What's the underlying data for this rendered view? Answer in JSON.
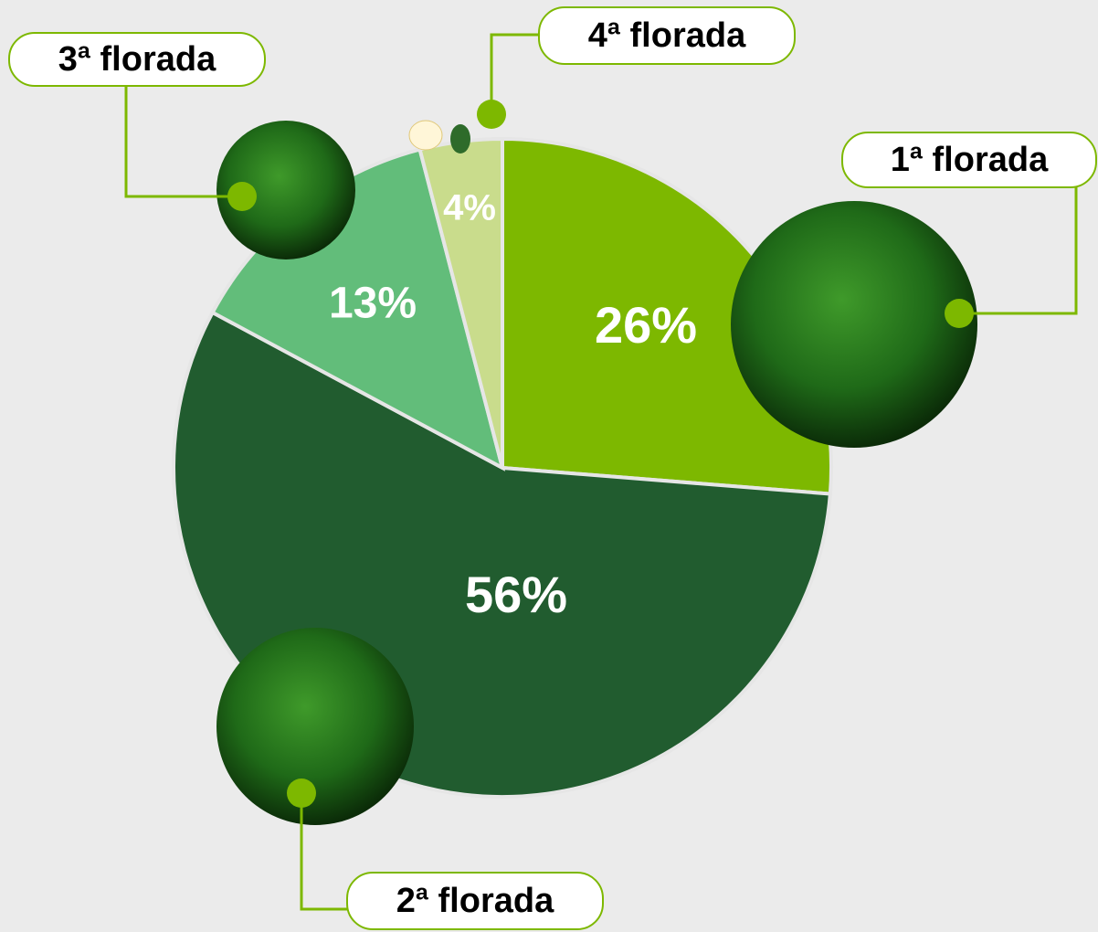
{
  "chart_data": {
    "type": "pie",
    "categories": [
      "1ª florada",
      "2ª florada",
      "3ª florada",
      "4ª florada"
    ],
    "values": [
      26,
      56,
      13,
      4
    ],
    "value_labels": [
      "26%",
      "56%",
      "13%",
      "4%"
    ],
    "colors": [
      "#7db800",
      "#215c2f",
      "#62bd7a",
      "#c9dc8c"
    ]
  }
}
